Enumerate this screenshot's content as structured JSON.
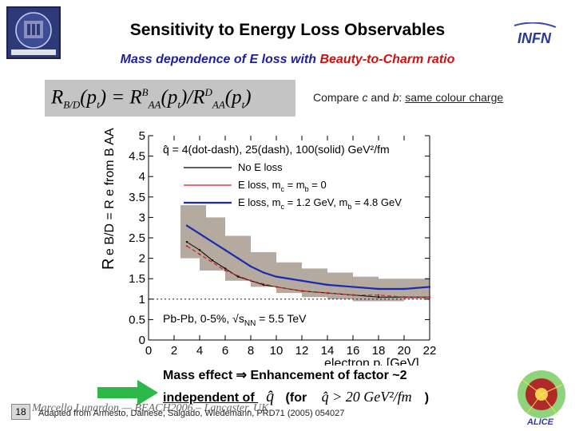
{
  "slide": {
    "title": "Sensitivity to Energy Loss Observables",
    "subtitle_part1": "Mass dependence of E loss with ",
    "subtitle_part2": "Beauty-to-Charm ratio",
    "formula": {
      "lhs": "R",
      "lhs_sub": "B/D",
      "args": "(p",
      "args_sub": "t",
      "eq": ") = R",
      "num_sup": "B",
      "num_sub": "AA",
      "slash": "(p",
      "mid": ")/R",
      "den_sup": "D",
      "end": ")"
    },
    "note_prefix": "Compare ",
    "note_c": "c",
    "note_and": " and ",
    "note_b": "b",
    "note_colon": ": ",
    "note_underlined": "same colour charge",
    "logos": {
      "left": "UNIVERSITA DEGLI STUDI DI PADOVA",
      "right": "INFN"
    },
    "footer": {
      "line1_a": "Mass effect ",
      "arrow": "⇒",
      "line1_b": " Enhancement of factor ~2",
      "line2_a": "independent of ",
      "line2_b": " (for ",
      "line2_cond": "q̂ > 20 GeV²/fm",
      "line2_close": ")"
    },
    "slide_number": "18",
    "credit": "Marcello Lunardon — BEACH2006 – Lancaster, UK",
    "citation": "Adapted from Armesto, Dainese, Salgado, Wiedemann, PRD71 (2005) 054027"
  },
  "chart_data": {
    "type": "line",
    "xlabel": "electron p",
    "xlabel_sub": "t",
    "xlabel_unit": " [GeV]",
    "ylabel": "R",
    "xlim": [
      0,
      22
    ],
    "ylim": [
      0,
      5
    ],
    "x_ticks": [
      0,
      2,
      4,
      6,
      8,
      10,
      12,
      14,
      16,
      18,
      20,
      22
    ],
    "y_ticks": [
      "0",
      "0.5",
      "1",
      "1.5",
      "2",
      "2.5",
      "3",
      "3.5",
      "4",
      "4.5",
      "5"
    ],
    "y_tick_values": [
      0,
      0.5,
      1,
      1.5,
      2,
      2.5,
      3,
      3.5,
      4,
      4.5,
      5
    ],
    "annotation_qhat": "q̂ = 4(dot-dash), 25(dash), 100(solid) GeV²/fm",
    "annotation_system": "Pb-Pb, 0-5%, √s",
    "annotation_system_sub": "NN",
    "annotation_system_end": " = 5.5 TeV",
    "legend": [
      {
        "label": "No E loss",
        "color": "#000000"
      },
      {
        "label": "E loss, m",
        "sub": "c",
        "rest": " = m",
        "sub2": "b",
        "rest2": " = 0",
        "color": "#cc2222"
      },
      {
        "label": "E loss, m",
        "sub": "c",
        "rest": " = 1.2 GeV, m",
        "sub2": "b",
        "rest2": " = 4.8 GeV",
        "color": "#1a2ab0"
      }
    ],
    "series": [
      {
        "name": "No E loss",
        "color": "#000000",
        "x": [
          3,
          4,
          5,
          6,
          7,
          8,
          9,
          10,
          12,
          14,
          16,
          18,
          20,
          22
        ],
        "values": [
          2.4,
          2.2,
          1.95,
          1.75,
          1.55,
          1.45,
          1.35,
          1.3,
          1.2,
          1.15,
          1.1,
          1.05,
          1.05,
          1.05
        ]
      },
      {
        "name": "E loss massless",
        "color": "#cc2222",
        "x": [
          3,
          4,
          6,
          8,
          10,
          12,
          14,
          16,
          18,
          20,
          22
        ],
        "values": [
          2.3,
          2.1,
          1.7,
          1.45,
          1.3,
          1.2,
          1.15,
          1.1,
          1.1,
          1.05,
          1.05
        ]
      },
      {
        "name": "E loss massive",
        "color": "#1a2ab0",
        "x": [
          3,
          4,
          5,
          6,
          7,
          8,
          9,
          10,
          12,
          14,
          16,
          18,
          20,
          22
        ],
        "values": [
          2.8,
          2.6,
          2.4,
          2.2,
          2.0,
          1.8,
          1.65,
          1.55,
          1.45,
          1.35,
          1.3,
          1.25,
          1.25,
          1.3
        ]
      }
    ],
    "error_boxes": [
      {
        "x": 3.5,
        "low": 2.0,
        "high": 3.3
      },
      {
        "x": 5,
        "low": 1.7,
        "high": 3.0
      },
      {
        "x": 7,
        "low": 1.45,
        "high": 2.55
      },
      {
        "x": 9,
        "low": 1.3,
        "high": 2.15
      },
      {
        "x": 11,
        "low": 1.15,
        "high": 1.9
      },
      {
        "x": 13,
        "low": 1.05,
        "high": 1.75
      },
      {
        "x": 15,
        "low": 1.0,
        "high": 1.65
      },
      {
        "x": 17,
        "low": 0.95,
        "high": 1.55
      },
      {
        "x": 19,
        "low": 0.95,
        "high": 1.5
      },
      {
        "x": 21,
        "low": 1.0,
        "high": 1.5
      }
    ]
  }
}
